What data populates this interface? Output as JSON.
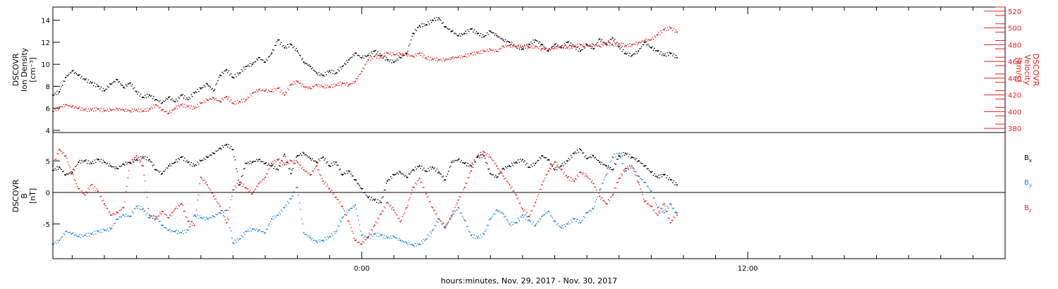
{
  "figure": {
    "xlabel": "hours:minutes, Nov. 29, 2017 - Nov. 30, 2017",
    "colors": {
      "black": "#000000",
      "red": "#e8201e",
      "blue": "#1a86d6"
    }
  },
  "chart_data": [
    {
      "type": "scatter",
      "panel": "plasma",
      "ylabel": [
        "DSCOVR",
        "Ion Density",
        "[cm⁻³]"
      ],
      "y2label": [
        "DSCOVR",
        "Velocity",
        "[km/s]"
      ],
      "x_ticks": [
        "0:00",
        "12:00"
      ],
      "x_unit": "hours relative to 00:00 Nov. 30, 2017",
      "xlim": [
        -9.6,
        20.0
      ],
      "ylim": [
        3.8,
        15.2
      ],
      "y_ticks": [
        4,
        6,
        8,
        10,
        12,
        14
      ],
      "y2lim": [
        375,
        525
      ],
      "y2_ticks": [
        380,
        400,
        420,
        440,
        460,
        480,
        500,
        520
      ],
      "grid": false,
      "series": [
        {
          "axis": "left",
          "color": "#000000",
          "x": [
            -9.6,
            -9.4,
            -9.2,
            -9.0,
            -8.8,
            -8.6,
            -8.4,
            -8.2,
            -8.0,
            -7.8,
            -7.6,
            -7.4,
            -7.2,
            -7.0,
            -6.8,
            -6.6,
            -6.4,
            -6.2,
            -6.0,
            -5.8,
            -5.6,
            -5.4,
            -5.2,
            -5.0,
            -4.8,
            -4.6,
            -4.4,
            -4.2,
            -4.0,
            -3.8,
            -3.6,
            -3.4,
            -3.2,
            -3.0,
            -2.8,
            -2.6,
            -2.4,
            -2.2,
            -2.0,
            -1.8,
            -1.6,
            -1.4,
            -1.2,
            -1.0,
            -0.8,
            -0.6,
            -0.4,
            -0.2,
            0.0,
            0.2,
            0.4,
            0.6,
            0.8,
            1.0,
            1.2,
            1.4,
            1.6,
            1.8,
            2.0,
            2.2,
            2.4,
            2.6,
            2.8,
            3.0,
            3.2,
            3.4,
            3.6,
            3.8,
            4.0,
            4.2,
            4.4,
            4.6,
            4.8,
            5.0,
            5.2,
            5.4,
            5.6,
            5.8,
            6.0,
            6.2,
            6.4,
            6.6,
            6.8,
            7.0,
            7.2,
            7.4,
            7.6,
            7.8,
            8.0,
            8.2,
            8.4,
            8.6,
            8.8,
            9.0,
            9.2,
            9.4,
            9.6,
            9.8
          ],
          "y": [
            7.2,
            7.5,
            8.8,
            9.4,
            9.0,
            8.6,
            8.3,
            8.0,
            7.6,
            8.2,
            8.6,
            7.9,
            8.3,
            7.5,
            7.0,
            7.2,
            6.8,
            6.5,
            7.0,
            6.6,
            7.2,
            6.8,
            7.4,
            7.8,
            8.2,
            7.6,
            9.0,
            9.5,
            8.8,
            9.2,
            9.8,
            10.0,
            10.6,
            10.2,
            11.0,
            12.2,
            11.5,
            11.8,
            11.2,
            10.2,
            9.8,
            9.2,
            9.0,
            9.4,
            9.2,
            9.8,
            10.4,
            11.0,
            10.6,
            10.8,
            11.2,
            10.8,
            10.4,
            10.2,
            10.6,
            11.0,
            12.8,
            13.5,
            13.6,
            14.0,
            14.2,
            13.4,
            13.0,
            12.6,
            12.8,
            13.2,
            12.8,
            12.5,
            13.0,
            12.6,
            12.2,
            12.0,
            11.6,
            11.4,
            11.8,
            12.2,
            11.8,
            11.2,
            11.8,
            11.5,
            12.0,
            11.6,
            11.2,
            11.8,
            11.4,
            12.3,
            11.8,
            12.4,
            11.6,
            11.0,
            10.8,
            11.2,
            12.0,
            11.5,
            11.2,
            10.8,
            11.0,
            10.6
          ]
        },
        {
          "axis": "right",
          "color": "#e8201e",
          "x": [
            -9.6,
            -9.4,
            -9.2,
            -9.0,
            -8.8,
            -8.6,
            -8.4,
            -8.2,
            -8.0,
            -7.8,
            -7.6,
            -7.4,
            -7.2,
            -7.0,
            -6.8,
            -6.6,
            -6.4,
            -6.2,
            -6.0,
            -5.8,
            -5.6,
            -5.4,
            -5.2,
            -5.0,
            -4.8,
            -4.6,
            -4.4,
            -4.2,
            -4.0,
            -3.8,
            -3.6,
            -3.4,
            -3.2,
            -3.0,
            -2.8,
            -2.6,
            -2.4,
            -2.2,
            -2.0,
            -1.8,
            -1.6,
            -1.4,
            -1.2,
            -1.0,
            -0.8,
            -0.6,
            -0.4,
            -0.2,
            0.0,
            0.2,
            0.4,
            0.6,
            0.8,
            1.0,
            1.2,
            1.4,
            1.6,
            1.8,
            2.0,
            2.2,
            2.4,
            2.6,
            2.8,
            3.0,
            3.2,
            3.4,
            3.6,
            3.8,
            4.0,
            4.2,
            4.4,
            4.6,
            4.8,
            5.0,
            5.2,
            5.4,
            5.6,
            5.8,
            6.0,
            6.2,
            6.4,
            6.6,
            6.8,
            7.0,
            7.2,
            7.4,
            7.6,
            7.8,
            8.0,
            8.2,
            8.4,
            8.6,
            8.8,
            9.0,
            9.2,
            9.4,
            9.6,
            9.8
          ],
          "y": [
            400,
            405,
            408,
            406,
            404,
            402,
            402,
            403,
            401,
            402,
            403,
            402,
            401,
            402,
            401,
            403,
            408,
            402,
            398,
            404,
            408,
            406,
            404,
            410,
            414,
            416,
            412,
            418,
            410,
            412,
            414,
            422,
            426,
            425,
            424,
            428,
            420,
            432,
            436,
            430,
            428,
            432,
            430,
            430,
            432,
            434,
            432,
            436,
            448,
            462,
            466,
            465,
            470,
            468,
            469,
            468,
            466,
            470,
            464,
            463,
            462,
            462,
            464,
            465,
            466,
            469,
            470,
            472,
            474,
            472,
            478,
            479,
            478,
            478,
            477,
            478,
            475,
            474,
            476,
            478,
            476,
            478,
            480,
            479,
            480,
            478,
            482,
            480,
            481,
            479,
            480,
            482,
            485,
            486,
            492,
            498,
            500,
            495
          ]
        }
      ]
    },
    {
      "type": "scatter",
      "panel": "magnetic-field",
      "ylabel": [
        "DSCOVR",
        "B",
        "[nT]"
      ],
      "x_ticks": [
        "0:00",
        "12:00"
      ],
      "x_unit": "hours relative to 00:00 Nov. 30, 2017",
      "xlim": [
        -9.6,
        20.0
      ],
      "ylim": [
        -10.5,
        9.5
      ],
      "y_ticks": [
        -5,
        0,
        5
      ],
      "zero_line": true,
      "grid": false,
      "legend": "right",
      "series": [
        {
          "name": "B",
          "sub": "x",
          "color": "#000000",
          "x": [
            -9.6,
            -9.4,
            -9.2,
            -9.0,
            -8.8,
            -8.6,
            -8.4,
            -8.2,
            -8.0,
            -7.8,
            -7.6,
            -7.4,
            -7.2,
            -7.0,
            -6.8,
            -6.6,
            -6.4,
            -6.2,
            -6.0,
            -5.8,
            -5.6,
            -5.4,
            -5.2,
            -5.0,
            -4.8,
            -4.6,
            -4.4,
            -4.2,
            -4.0,
            -3.8,
            -3.6,
            -3.4,
            -3.2,
            -3.0,
            -2.8,
            -2.6,
            -2.4,
            -2.2,
            -2.0,
            -1.8,
            -1.6,
            -1.4,
            -1.2,
            -1.0,
            -0.8,
            -0.6,
            -0.4,
            -0.2,
            0.0,
            0.2,
            0.4,
            0.6,
            0.8,
            1.0,
            1.2,
            1.4,
            1.6,
            1.8,
            2.0,
            2.2,
            2.4,
            2.6,
            2.8,
            3.0,
            3.2,
            3.4,
            3.6,
            3.8,
            4.0,
            4.2,
            4.4,
            4.6,
            4.8,
            5.0,
            5.2,
            5.4,
            5.6,
            5.8,
            6.0,
            6.2,
            6.4,
            6.6,
            6.8,
            7.0,
            7.2,
            7.4,
            7.6,
            7.8,
            8.0,
            8.2,
            8.4,
            8.6,
            8.8,
            9.0,
            9.2,
            9.4,
            9.6,
            9.8
          ],
          "y": [
            3.5,
            4.0,
            2.8,
            3.2,
            4.8,
            5.0,
            4.6,
            5.2,
            4.8,
            4.2,
            3.8,
            4.5,
            4.8,
            5.2,
            5.6,
            5.2,
            3.6,
            3.0,
            4.2,
            4.8,
            5.6,
            4.8,
            4.2,
            5.0,
            5.6,
            6.2,
            7.0,
            7.6,
            6.8,
            1.2,
            4.6,
            4.8,
            5.2,
            4.6,
            4.2,
            3.6,
            6.0,
            3.0,
            5.8,
            6.2,
            5.4,
            4.8,
            5.6,
            4.2,
            4.8,
            2.8,
            3.4,
            2.0,
            0.6,
            -0.8,
            -1.2,
            -1.6,
            1.8,
            2.8,
            3.2,
            2.4,
            3.6,
            4.2,
            3.4,
            4.0,
            3.2,
            2.0,
            4.8,
            5.2,
            4.6,
            4.2,
            5.6,
            5.8,
            3.0,
            2.4,
            3.8,
            4.2,
            4.8,
            5.2,
            4.0,
            4.6,
            5.8,
            5.2,
            3.6,
            4.2,
            5.0,
            6.2,
            6.8,
            5.4,
            5.8,
            4.8,
            4.2,
            3.6,
            5.8,
            6.2,
            5.6,
            5.0,
            4.2,
            3.2,
            2.4,
            2.8,
            2.0,
            1.2
          ]
        },
        {
          "name": "B",
          "sub": "y",
          "color": "#1a86d6",
          "x": [
            -9.6,
            -9.4,
            -9.2,
            -9.0,
            -8.8,
            -8.6,
            -8.4,
            -8.2,
            -8.0,
            -7.8,
            -7.6,
            -7.4,
            -7.2,
            -7.0,
            -6.8,
            -6.6,
            -6.4,
            -6.2,
            -6.0,
            -5.8,
            -5.6,
            -5.4,
            -5.2,
            -5.0,
            -4.8,
            -4.6,
            -4.4,
            -4.2,
            -4.0,
            -3.8,
            -3.6,
            -3.4,
            -3.2,
            -3.0,
            -2.8,
            -2.6,
            -2.4,
            -2.2,
            -2.0,
            -1.8,
            -1.6,
            -1.4,
            -1.2,
            -1.0,
            -0.8,
            -0.6,
            -0.4,
            -0.2,
            0.0,
            0.2,
            0.4,
            0.6,
            0.8,
            1.0,
            1.2,
            1.4,
            1.6,
            1.8,
            2.0,
            2.2,
            2.4,
            2.6,
            2.8,
            3.0,
            3.2,
            3.4,
            3.6,
            3.8,
            4.0,
            4.2,
            4.4,
            4.6,
            4.8,
            5.0,
            5.2,
            5.4,
            5.6,
            5.8,
            6.0,
            6.2,
            6.4,
            6.6,
            6.8,
            7.0,
            7.2,
            7.4,
            7.6,
            7.8,
            8.0,
            8.2,
            8.4,
            8.6,
            8.8,
            9.0,
            9.2,
            9.4,
            9.6,
            9.8
          ],
          "y": [
            -8.2,
            -7.6,
            -6.2,
            -6.5,
            -7.0,
            -6.8,
            -6.6,
            -6.2,
            -6.0,
            -5.8,
            -4.2,
            -3.6,
            -3.8,
            -2.2,
            -2.6,
            -4.0,
            -3.8,
            -5.2,
            -6.0,
            -6.2,
            -6.4,
            -6.0,
            -3.6,
            -4.0,
            -4.2,
            -3.8,
            -3.2,
            -2.8,
            -8.0,
            -7.4,
            -6.2,
            -5.8,
            -6.0,
            -6.4,
            -4.2,
            -3.6,
            -2.4,
            -1.0,
            0.8,
            -6.4,
            -7.2,
            -7.8,
            -7.6,
            -7.0,
            -6.2,
            -4.0,
            -2.8,
            -2.0,
            -6.8,
            -7.2,
            -6.6,
            -6.8,
            -7.2,
            -7.0,
            -7.6,
            -8.0,
            -8.4,
            -8.2,
            -7.4,
            -6.0,
            -4.2,
            -5.6,
            -3.8,
            -2.4,
            -4.4,
            -6.8,
            -7.2,
            -6.6,
            -4.2,
            -2.8,
            -3.4,
            -5.0,
            -4.8,
            -3.6,
            -4.4,
            -5.2,
            -3.8,
            -3.0,
            -4.6,
            -5.6,
            -5.0,
            -4.2,
            -4.8,
            -3.2,
            -2.6,
            0.4,
            2.8,
            5.6,
            6.2,
            3.4,
            4.2,
            2.6,
            1.6,
            0.2,
            -2.4,
            -3.2,
            -1.8,
            -3.6
          ]
        },
        {
          "name": "B",
          "sub": "z",
          "color": "#e8201e",
          "x": [
            -9.6,
            -9.4,
            -9.2,
            -9.0,
            -8.8,
            -8.6,
            -8.4,
            -8.2,
            -8.0,
            -7.8,
            -7.6,
            -7.4,
            -7.2,
            -7.0,
            -6.8,
            -6.6,
            -6.4,
            -6.2,
            -6.0,
            -5.8,
            -5.6,
            -5.4,
            -5.2,
            -5.0,
            -4.8,
            -4.6,
            -4.4,
            -4.2,
            -4.0,
            -3.8,
            -3.6,
            -3.4,
            -3.2,
            -3.0,
            -2.8,
            -2.6,
            -2.4,
            -2.2,
            -2.0,
            -1.8,
            -1.6,
            -1.4,
            -1.2,
            -1.0,
            -0.8,
            -0.6,
            -0.4,
            -0.2,
            0.0,
            0.2,
            0.4,
            0.6,
            0.8,
            1.0,
            1.2,
            1.4,
            1.6,
            1.8,
            2.0,
            2.2,
            2.4,
            2.6,
            2.8,
            3.0,
            3.2,
            3.4,
            3.6,
            3.8,
            4.0,
            4.2,
            4.4,
            4.6,
            4.8,
            5.0,
            5.2,
            5.4,
            5.6,
            5.8,
            6.0,
            6.2,
            6.4,
            6.6,
            6.8,
            7.0,
            7.2,
            7.4,
            7.6,
            7.8,
            8.0,
            8.2,
            8.4,
            8.6,
            8.8,
            9.0,
            9.2,
            9.4,
            9.6,
            9.8
          ],
          "y": [
            4.2,
            6.8,
            5.8,
            3.0,
            0.6,
            -0.4,
            1.2,
            0.2,
            -1.8,
            -3.6,
            -3.2,
            -2.4,
            4.6,
            5.8,
            4.2,
            -3.6,
            -4.2,
            -3.0,
            -4.0,
            -2.6,
            -1.8,
            -4.6,
            -5.2,
            2.4,
            1.2,
            -0.6,
            -2.2,
            -4.8,
            0.4,
            1.6,
            0.8,
            -0.2,
            1.4,
            2.4,
            4.6,
            5.2,
            4.4,
            5.0,
            4.8,
            3.6,
            2.8,
            4.2,
            1.8,
            0.6,
            -0.8,
            -2.2,
            -4.6,
            -7.6,
            -8.2,
            -7.0,
            -5.2,
            -3.4,
            -1.6,
            -2.8,
            -4.6,
            -2.4,
            0.8,
            2.2,
            -0.2,
            -2.4,
            -4.2,
            -5.4,
            -3.6,
            -1.2,
            0.8,
            3.4,
            5.8,
            6.4,
            5.6,
            4.2,
            2.6,
            1.2,
            -0.4,
            -2.6,
            -3.8,
            -1.6,
            1.2,
            3.4,
            4.8,
            3.6,
            2.4,
            1.8,
            3.2,
            2.6,
            1.4,
            -0.6,
            -1.8,
            -0.4,
            2.2,
            3.8,
            4.2,
            1.6,
            -1.4,
            -2.2,
            -3.6,
            -1.8,
            -4.8,
            -3.2
          ]
        }
      ]
    }
  ]
}
